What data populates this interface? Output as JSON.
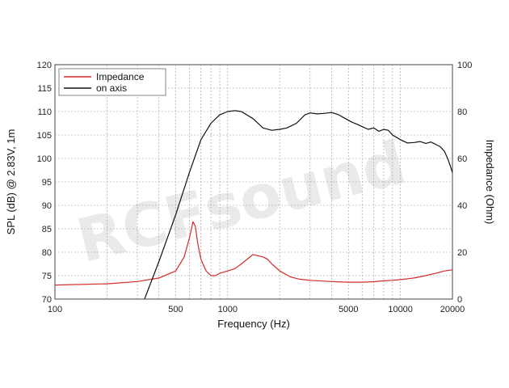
{
  "chart_data": {
    "type": "line",
    "xlabel": "Frequency (Hz)",
    "ylabel": "SPL (dB) @ 2.83V, 1m",
    "y2label": "Impedance (Ohm)",
    "xscale": "log",
    "xlim": [
      100,
      20000
    ],
    "ylim": [
      70,
      120
    ],
    "y2lim": [
      0,
      100
    ],
    "x_tick_labels": [
      "100",
      "500",
      "1000",
      "5000",
      "10000",
      "20000"
    ],
    "x_ticks": [
      100,
      500,
      1000,
      5000,
      10000,
      20000
    ],
    "y_ticks": [
      70,
      75,
      80,
      85,
      90,
      95,
      100,
      105,
      110,
      115,
      120
    ],
    "y2_ticks": [
      0,
      20,
      40,
      60,
      80,
      100
    ],
    "grid": true,
    "legend_position": "top-left",
    "watermark": "RCFsound",
    "series": [
      {
        "name": "Impedance",
        "axis": "right",
        "color": "#d42a2a",
        "x": [
          100,
          200,
          300,
          400,
          500,
          560,
          600,
          630,
          650,
          670,
          700,
          750,
          800,
          850,
          900,
          1000,
          1100,
          1200,
          1400,
          1600,
          1700,
          1800,
          2000,
          2300,
          2600,
          3000,
          4000,
          5000,
          6000,
          7000,
          8000,
          9000,
          10000,
          12000,
          14000,
          16000,
          18000,
          20000
        ],
        "y": [
          6,
          6.5,
          7.5,
          9,
          12,
          18,
          26,
          33,
          31,
          24,
          17,
          12,
          10,
          10,
          11,
          12,
          13,
          15,
          19,
          18,
          17,
          15,
          12,
          9.5,
          8.5,
          8,
          7.5,
          7.2,
          7.2,
          7.4,
          7.8,
          8,
          8.3,
          9,
          10,
          11,
          12,
          12.5
        ]
      },
      {
        "name": "on axis",
        "axis": "left",
        "color": "#111111",
        "x": [
          330,
          400,
          500,
          600,
          700,
          800,
          900,
          1000,
          1100,
          1200,
          1400,
          1600,
          1800,
          2000,
          2200,
          2500,
          2800,
          3000,
          3300,
          3600,
          4000,
          4400,
          4800,
          5200,
          5600,
          6000,
          6500,
          7000,
          7500,
          8000,
          8500,
          9000,
          10000,
          11000,
          12000,
          13000,
          14000,
          15000,
          16000,
          17000,
          18000,
          19000,
          20000
        ],
        "y": [
          70,
          78,
          88,
          97,
          104,
          107.5,
          109.3,
          110,
          110.2,
          110,
          108.5,
          106.5,
          106,
          106.2,
          106.5,
          107.5,
          109.3,
          109.7,
          109.5,
          109.6,
          109.8,
          109.3,
          108.5,
          107.8,
          107.3,
          106.8,
          106.2,
          106.5,
          105.8,
          106.2,
          106,
          105,
          104,
          103.3,
          103.4,
          103.6,
          103.2,
          103.5,
          103,
          102.5,
          101.5,
          99.5,
          97
        ]
      }
    ]
  }
}
